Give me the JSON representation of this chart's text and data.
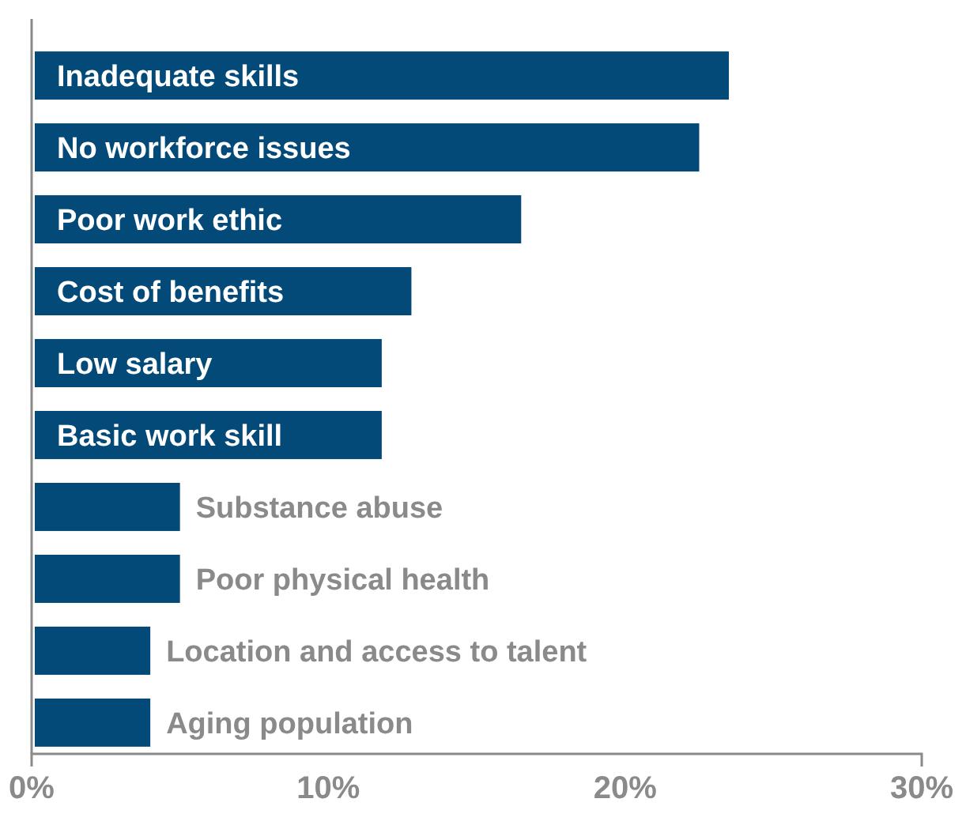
{
  "chart_data": {
    "type": "bar",
    "orientation": "horizontal",
    "categories": [
      "Inadequate skills",
      "No workforce issues",
      "Poor work ethic",
      "Cost of benefits",
      "Low salary",
      "Basic work skill",
      "Substance abuse",
      "Poor physical health",
      "Location and access to talent",
      "Aging population"
    ],
    "values": [
      23.5,
      22.5,
      16.5,
      12.8,
      11.8,
      11.8,
      5,
      5,
      4,
      4
    ],
    "color": "#044a79",
    "xlim": [
      0,
      30
    ],
    "xticks": [
      {
        "value": 0,
        "label": "0%"
      },
      {
        "value": 10,
        "label": "10%"
      },
      {
        "value": 20,
        "label": "20%"
      },
      {
        "value": 30,
        "label": "30%"
      }
    ],
    "grid": false
  }
}
